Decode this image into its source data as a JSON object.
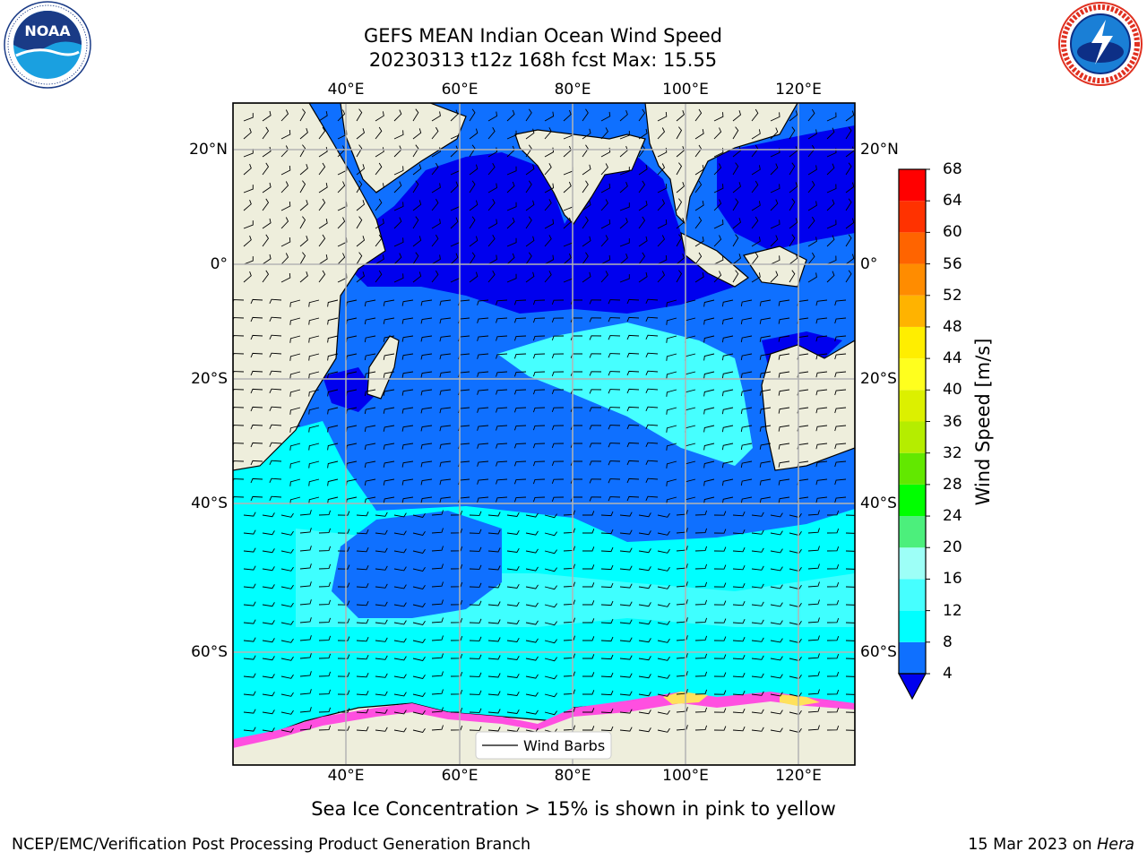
{
  "title": {
    "line1": "GEFS MEAN Indian Ocean Wind Speed",
    "line2": "20230313 t12z 168h fcst   Max: 15.55"
  },
  "logos": {
    "left": {
      "text": "NOAA",
      "icon": "noaa-logo"
    },
    "right": {
      "icon": "nws-logo"
    }
  },
  "map": {
    "lon_ticks": [
      "40°E",
      "60°E",
      "80°E",
      "100°E",
      "120°E"
    ],
    "lat_ticks": [
      "20°N",
      "0°",
      "20°S",
      "40°S",
      "60°S"
    ],
    "legend_label": "Wind Barbs",
    "colors": {
      "land": "#eeeedc",
      "ice_pink": "#ff4fe0",
      "ice_yellow": "#ffe15a",
      "grid": "#b4b4b4"
    }
  },
  "colorbar": {
    "label": "Wind Speed [m/s]",
    "ticks": [
      "4",
      "8",
      "12",
      "16",
      "20",
      "24",
      "28",
      "32",
      "36",
      "40",
      "44",
      "48",
      "52",
      "56",
      "60",
      "64",
      "68"
    ],
    "levels": [
      {
        "min": 0,
        "max": 4,
        "color": "#0000ee"
      },
      {
        "min": 4,
        "max": 8,
        "color": "#0f70ff"
      },
      {
        "min": 8,
        "max": 12,
        "color": "#00ffff"
      },
      {
        "min": 12,
        "max": 16,
        "color": "#46ffff"
      },
      {
        "min": 16,
        "max": 20,
        "color": "#9dfff7"
      },
      {
        "min": 20,
        "max": 24,
        "color": "#4cef7c"
      },
      {
        "min": 24,
        "max": 28,
        "color": "#00ff00"
      },
      {
        "min": 28,
        "max": 32,
        "color": "#62e800"
      },
      {
        "min": 32,
        "max": 36,
        "color": "#b5ed00"
      },
      {
        "min": 36,
        "max": 40,
        "color": "#dcf000"
      },
      {
        "min": 40,
        "max": 44,
        "color": "#ffff1e"
      },
      {
        "min": 44,
        "max": 48,
        "color": "#ffee00"
      },
      {
        "min": 48,
        "max": 52,
        "color": "#ffb300"
      },
      {
        "min": 52,
        "max": 56,
        "color": "#ff8c00"
      },
      {
        "min": 56,
        "max": 60,
        "color": "#ff6400"
      },
      {
        "min": 60,
        "max": 64,
        "color": "#ff3200"
      },
      {
        "min": 64,
        "max": 68,
        "color": "#ff0000"
      }
    ]
  },
  "note": "Sea Ice Concentration > 15% is shown in pink to yellow",
  "footer": {
    "left": "NCEP/EMC/Verification Post Processing Product Generation Branch",
    "right_prefix": "15 Mar 2023 on ",
    "right_machine": "Hera"
  }
}
